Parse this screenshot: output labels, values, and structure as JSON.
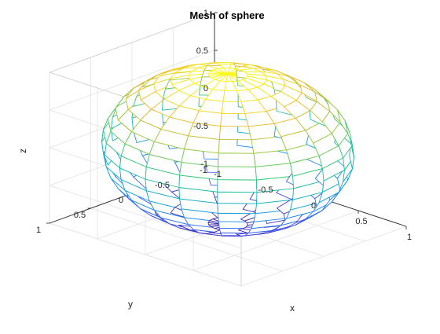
{
  "chart_data": {
    "type": "mesh",
    "title": "Mesh of sphere",
    "xlabel": "x",
    "ylabel": "y",
    "zlabel": "z",
    "xlim": [
      -1,
      1
    ],
    "ylim": [
      -1,
      1
    ],
    "zlim": [
      -1,
      1
    ],
    "x_ticks": [
      "-1",
      "-0.5",
      "0",
      "0.5",
      "1"
    ],
    "y_ticks": [
      "-1",
      "-0.5",
      "0",
      "0.5",
      "1"
    ],
    "z_ticks": [
      "-1",
      "-0.5",
      "0",
      "0.5",
      "1"
    ],
    "grid": true,
    "surface": {
      "shape": "unit sphere",
      "n_latitude_bands": 20,
      "n_longitude_lines": 20,
      "colormap": "parula",
      "color_by": "z"
    },
    "view": {
      "azimuth": -37.5,
      "elevation": 30
    }
  }
}
